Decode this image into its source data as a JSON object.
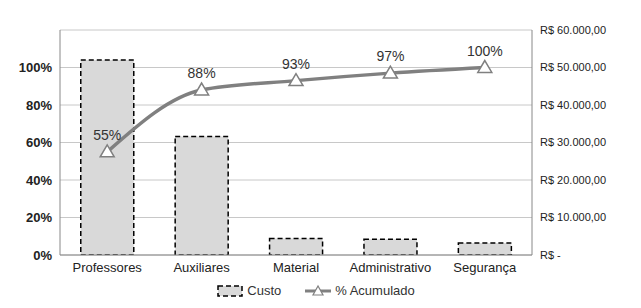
{
  "chart_data": {
    "type": "bar",
    "categories": [
      "Professores",
      "Auxiliares",
      "Material",
      "Administrativo",
      "Segurança"
    ],
    "series": [
      {
        "name": "Custo",
        "type": "bar",
        "color": "#d9d9d9",
        "line_style": "dashed",
        "axis": "y2",
        "values": [
          52000,
          31600,
          4400,
          4200,
          3200
        ]
      },
      {
        "name": "% Acumulado",
        "type": "line",
        "color": "#808080",
        "marker": "triangle",
        "data_labels": true,
        "values": [
          55,
          88,
          93,
          97,
          100
        ],
        "value_labels": [
          "55%",
          "88%",
          "93%",
          "97%",
          "100%"
        ]
      }
    ],
    "ylim": [
      0,
      120
    ],
    "yticks": [
      {
        "value": 0,
        "label": "0%"
      },
      {
        "value": 20,
        "label": "20%"
      },
      {
        "value": 40,
        "label": "40%"
      },
      {
        "value": 60,
        "label": "60%"
      },
      {
        "value": 80,
        "label": "80%"
      },
      {
        "value": 100,
        "label": "100%"
      }
    ],
    "y2lim": [
      0,
      60000
    ],
    "y2ticks": [
      {
        "value": 0,
        "label": "R$ -"
      },
      {
        "value": 10000,
        "label": "R$ 10.000,00"
      },
      {
        "value": 20000,
        "label": "R$ 20.000,00"
      },
      {
        "value": 30000,
        "label": "R$ 30.000,00"
      },
      {
        "value": 40000,
        "label": "R$ 40.000,00"
      },
      {
        "value": 50000,
        "label": "R$ 50.000,00"
      },
      {
        "value": 60000,
        "label": "R$ 60.000,00"
      }
    ],
    "grid": true,
    "legend": "bottom"
  }
}
